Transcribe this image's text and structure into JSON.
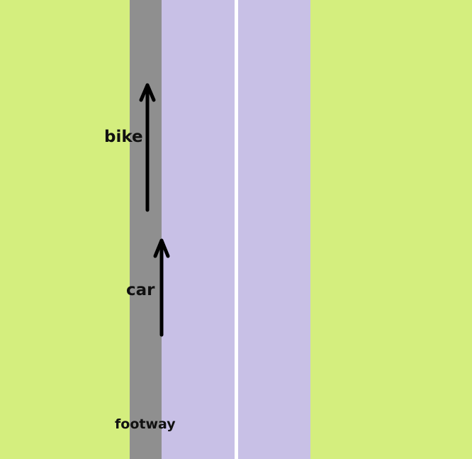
{
  "labels": {
    "bike": "bike",
    "car": "car",
    "footway": "footway"
  },
  "colors": {
    "grass": "#d4ee7e",
    "footway": "#8f8f8f",
    "carriageway": "#c8c0e6",
    "center_line": "#ffffff",
    "arrow": "#000000"
  },
  "arrows": [
    {
      "name": "bike-arrow-icon",
      "direction": "up"
    },
    {
      "name": "car-arrow-icon",
      "direction": "up"
    }
  ]
}
